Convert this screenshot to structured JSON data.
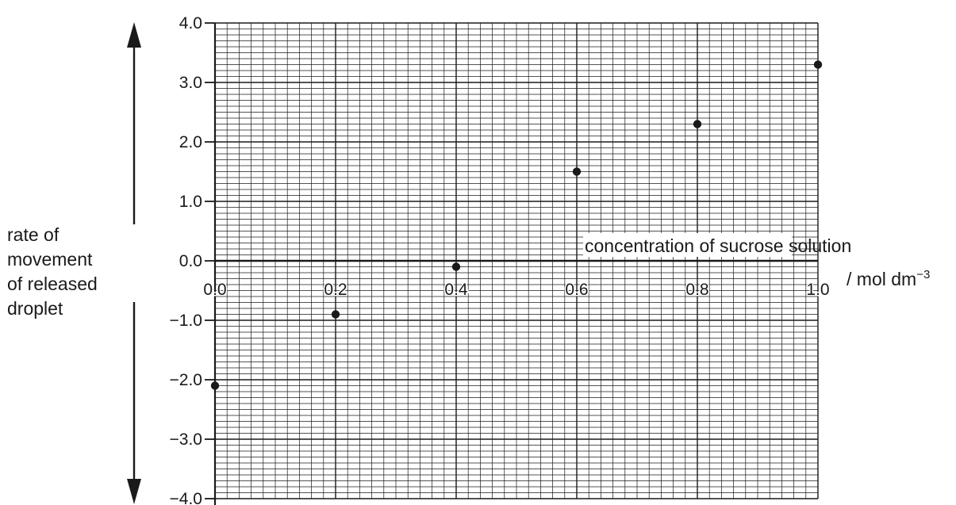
{
  "chart_data": {
    "type": "scatter",
    "title": "",
    "x": [
      0.0,
      0.2,
      0.4,
      0.6,
      0.8,
      1.0
    ],
    "y": [
      -2.1,
      -0.9,
      -0.1,
      1.5,
      2.3,
      3.3
    ],
    "xlim": [
      0.0,
      1.0
    ],
    "ylim": [
      -4.0,
      4.0
    ],
    "x_ticks": [
      0.0,
      0.2,
      0.4,
      0.6,
      0.8,
      1.0
    ],
    "x_tick_labels": [
      "0.0",
      "0.2",
      "0.4",
      "0.6",
      "0.8",
      "1.0"
    ],
    "y_ticks": [
      4.0,
      3.0,
      2.0,
      1.0,
      0.0,
      -1.0,
      -2.0,
      -3.0,
      -4.0
    ],
    "y_tick_labels": [
      "4.0",
      "3.0",
      "2.0",
      "1.0",
      "0.0",
      "−1.0",
      "−2.0",
      "−3.0",
      "−4.0"
    ],
    "xlabel_line1": "concentration of sucrose solution",
    "xlabel_unit_prefix": "/ mol dm",
    "xlabel_unit_exponent": "−3",
    "ylabel_lines": [
      "rate of",
      "movement",
      "of released",
      "droplet"
    ],
    "grid": true,
    "grid_minor_divisions": 10,
    "y_axis_arrow": "double-headed",
    "colors": {
      "ink": "#1a1a1a",
      "background": "#ffffff"
    }
  }
}
